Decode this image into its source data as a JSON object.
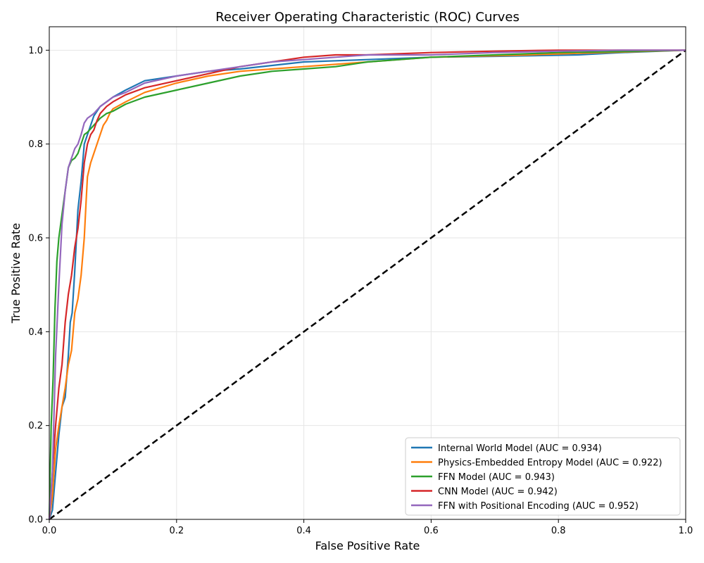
{
  "chart_data": {
    "type": "line",
    "title": "Receiver Operating Characteristic (ROC) Curves",
    "xlabel": "False Positive Rate",
    "ylabel": "True Positive Rate",
    "xlim": [
      0,
      1
    ],
    "ylim": [
      0,
      1.05
    ],
    "x_ticks": [
      "0.0",
      "0.2",
      "0.4",
      "0.6",
      "0.8",
      "1.0"
    ],
    "y_ticks": [
      "0.0",
      "0.2",
      "0.4",
      "0.6",
      "0.8",
      "1.0"
    ],
    "grid": true,
    "legend_position": "bottom-right",
    "reference_line": {
      "x": [
        0,
        1
      ],
      "y": [
        0,
        1
      ],
      "style": "dashed",
      "color": "#000000"
    },
    "series": [
      {
        "name": "Internal World Model (AUC = 0.934)",
        "color": "#1f77b4",
        "x": [
          0,
          0.005,
          0.01,
          0.015,
          0.02,
          0.025,
          0.03,
          0.033,
          0.036,
          0.04,
          0.045,
          0.05,
          0.055,
          0.06,
          0.065,
          0.07,
          0.075,
          0.08,
          0.09,
          0.1,
          0.12,
          0.15,
          0.2,
          0.25,
          0.3,
          0.4,
          0.5,
          0.6,
          0.7,
          0.83,
          0.9,
          1.0
        ],
        "y": [
          0,
          0.02,
          0.1,
          0.18,
          0.24,
          0.26,
          0.35,
          0.42,
          0.44,
          0.53,
          0.66,
          0.72,
          0.8,
          0.82,
          0.84,
          0.86,
          0.87,
          0.88,
          0.89,
          0.9,
          0.915,
          0.935,
          0.945,
          0.955,
          0.96,
          0.975,
          0.98,
          0.985,
          0.987,
          0.99,
          0.995,
          1.0
        ]
      },
      {
        "name": "Physics-Embedded Entropy Model (AUC = 0.922)",
        "color": "#ff7f0e",
        "x": [
          0,
          0.005,
          0.01,
          0.015,
          0.02,
          0.025,
          0.03,
          0.035,
          0.04,
          0.045,
          0.05,
          0.055,
          0.058,
          0.06,
          0.065,
          0.07,
          0.075,
          0.08,
          0.085,
          0.09,
          0.095,
          0.1,
          0.12,
          0.15,
          0.2,
          0.25,
          0.3,
          0.4,
          0.5,
          0.55,
          0.6,
          0.75,
          0.87,
          1.0
        ],
        "y": [
          0,
          0.05,
          0.15,
          0.2,
          0.24,
          0.28,
          0.33,
          0.36,
          0.44,
          0.47,
          0.52,
          0.6,
          0.68,
          0.73,
          0.76,
          0.78,
          0.8,
          0.82,
          0.84,
          0.85,
          0.865,
          0.875,
          0.89,
          0.91,
          0.93,
          0.945,
          0.955,
          0.965,
          0.975,
          0.98,
          0.985,
          0.99,
          0.995,
          1.0
        ]
      },
      {
        "name": "FFN Model (AUC = 0.943)",
        "color": "#2ca02c",
        "x": [
          0,
          0.003,
          0.006,
          0.009,
          0.012,
          0.015,
          0.02,
          0.025,
          0.03,
          0.035,
          0.04,
          0.045,
          0.05,
          0.055,
          0.06,
          0.07,
          0.08,
          0.09,
          0.1,
          0.12,
          0.15,
          0.2,
          0.25,
          0.3,
          0.35,
          0.4,
          0.45,
          0.5,
          0.6,
          0.7,
          0.8,
          0.9,
          1.0
        ],
        "y": [
          0,
          0.2,
          0.3,
          0.45,
          0.55,
          0.6,
          0.65,
          0.7,
          0.75,
          0.765,
          0.77,
          0.78,
          0.8,
          0.82,
          0.825,
          0.84,
          0.855,
          0.865,
          0.87,
          0.885,
          0.9,
          0.915,
          0.93,
          0.945,
          0.955,
          0.96,
          0.965,
          0.975,
          0.985,
          0.99,
          0.995,
          0.997,
          1.0
        ]
      },
      {
        "name": "CNN Model (AUC = 0.942)",
        "color": "#d62728",
        "x": [
          0,
          0.005,
          0.01,
          0.015,
          0.02,
          0.025,
          0.03,
          0.035,
          0.04,
          0.045,
          0.05,
          0.055,
          0.06,
          0.065,
          0.07,
          0.075,
          0.08,
          0.09,
          0.1,
          0.12,
          0.15,
          0.2,
          0.25,
          0.3,
          0.35,
          0.4,
          0.45,
          0.5,
          0.6,
          0.7,
          0.8,
          0.9,
          1.0
        ],
        "y": [
          0,
          0.1,
          0.2,
          0.28,
          0.33,
          0.42,
          0.48,
          0.52,
          0.58,
          0.62,
          0.68,
          0.76,
          0.8,
          0.82,
          0.83,
          0.85,
          0.865,
          0.88,
          0.89,
          0.905,
          0.92,
          0.935,
          0.95,
          0.965,
          0.975,
          0.985,
          0.99,
          0.99,
          0.995,
          0.998,
          1.0,
          1.0,
          1.0
        ]
      },
      {
        "name": "FFN with Positional Encoding (AUC = 0.952)",
        "color": "#9467bd",
        "x": [
          0,
          0.005,
          0.01,
          0.015,
          0.02,
          0.025,
          0.03,
          0.035,
          0.04,
          0.045,
          0.05,
          0.055,
          0.06,
          0.065,
          0.07,
          0.08,
          0.09,
          0.1,
          0.12,
          0.15,
          0.2,
          0.25,
          0.3,
          0.35,
          0.4,
          0.45,
          0.5,
          0.6,
          0.7,
          0.8,
          0.9,
          1.0
        ],
        "y": [
          0,
          0.1,
          0.35,
          0.5,
          0.63,
          0.7,
          0.75,
          0.77,
          0.79,
          0.8,
          0.82,
          0.845,
          0.855,
          0.86,
          0.865,
          0.88,
          0.89,
          0.9,
          0.91,
          0.93,
          0.945,
          0.955,
          0.965,
          0.975,
          0.98,
          0.985,
          0.99,
          0.99,
          0.995,
          0.998,
          1.0,
          1.0
        ]
      }
    ]
  }
}
